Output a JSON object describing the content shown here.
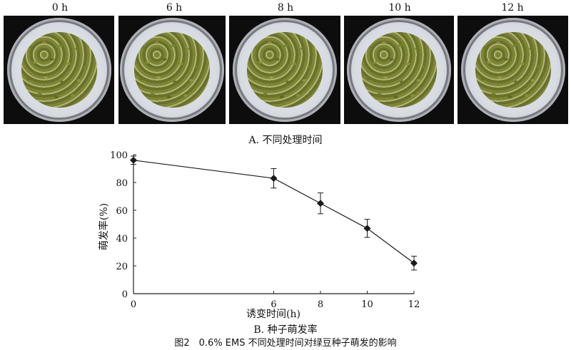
{
  "photos": [
    {
      "label": "0 h"
    },
    {
      "label": "6 h"
    },
    {
      "label": "8 h"
    },
    {
      "label": "10 h"
    },
    {
      "label": "12 h"
    }
  ],
  "caption_a": "A. 不同处理时间",
  "caption_b": "B. 种子萌发率",
  "figure_caption": "图2　0.6% EMS 不同处理时间对绿豆种子萌发的影响",
  "chart_data": {
    "type": "line",
    "x": [
      0,
      6,
      8,
      10,
      12
    ],
    "y": [
      96,
      83,
      65,
      47,
      22
    ],
    "error": [
      3,
      7,
      7.5,
      6.5,
      5
    ],
    "xlabel": "诱变时间(h)",
    "ylabel": "萌发率(%)",
    "xticks": [
      "0",
      "6",
      "8",
      "10",
      "12"
    ],
    "yticks": [
      "0",
      "20",
      "40",
      "60",
      "80",
      "100"
    ],
    "yticks_values": [
      0,
      20,
      40,
      60,
      80,
      100
    ],
    "ylim": [
      0,
      100
    ],
    "marker": "diamond",
    "color": "#1a1a1a"
  }
}
